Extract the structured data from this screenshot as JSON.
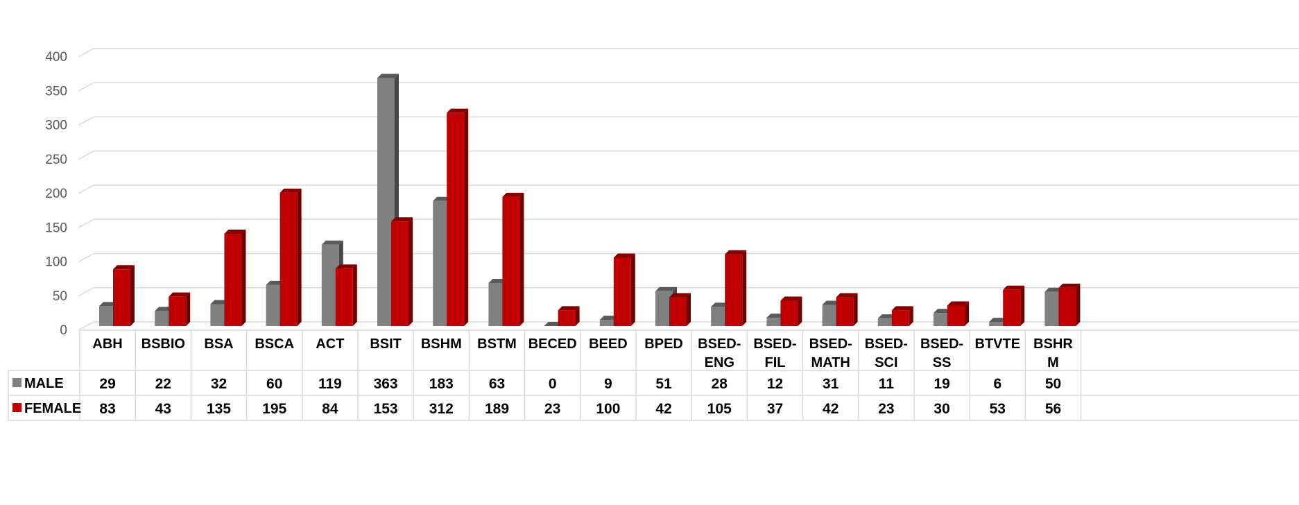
{
  "chart_data": {
    "type": "bar",
    "categories": [
      [
        "ABH"
      ],
      [
        "BSBIO"
      ],
      [
        "BSA"
      ],
      [
        "BSCA"
      ],
      [
        "ACT"
      ],
      [
        "BSIT"
      ],
      [
        "BSHM"
      ],
      [
        "BSTM"
      ],
      [
        "BECED"
      ],
      [
        "BEED"
      ],
      [
        "BPED"
      ],
      [
        "BSED-",
        "ENG"
      ],
      [
        "BSED-",
        "FIL"
      ],
      [
        "BSED-",
        "MATH"
      ],
      [
        "BSED-",
        "SCI"
      ],
      [
        "BSED-",
        "SS"
      ],
      [
        "BTVTE"
      ],
      [
        "BSHR",
        "M"
      ]
    ],
    "series": [
      {
        "name": "MALE",
        "color": "#808080",
        "values": [
          29,
          22,
          32,
          60,
          119,
          363,
          183,
          63,
          0,
          9,
          51,
          28,
          12,
          31,
          11,
          19,
          6,
          50
        ]
      },
      {
        "name": "FEMALE",
        "color": "#C00000",
        "values": [
          83,
          43,
          135,
          195,
          84,
          153,
          312,
          189,
          23,
          100,
          42,
          105,
          37,
          42,
          23,
          30,
          53,
          56
        ]
      }
    ],
    "y_ticks": [
      "0",
      "50",
      "100",
      "150",
      "200",
      "250",
      "300",
      "350",
      "400"
    ],
    "ylim": [
      0,
      400
    ],
    "grid": true,
    "three_d": true,
    "data_table": true,
    "legend": "data-table-left"
  }
}
